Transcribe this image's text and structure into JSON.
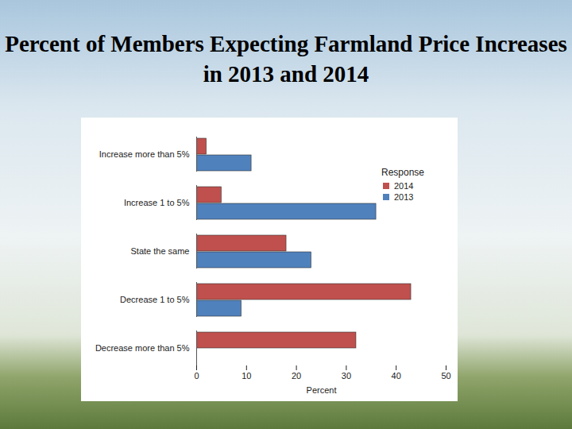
{
  "chart_data": {
    "type": "bar",
    "orientation": "horizontal",
    "title": "Percent of Members Expecting Farmland Price Increases in 2013 and 2014",
    "x_label": "Percent",
    "legend_title": "Response",
    "legend": "upper right",
    "categories": [
      "Increase more than 5%",
      "Increase 1 to 5%",
      "State the same",
      "Decrease 1 to 5%",
      "Decrease more than 5%"
    ],
    "series": [
      {
        "name": "2014",
        "color": "#c0504d",
        "values": [
          2,
          5,
          18,
          43,
          32
        ]
      },
      {
        "name": "2013",
        "color": "#4f81bd",
        "values": [
          11,
          36,
          23,
          9,
          0
        ]
      }
    ],
    "xlim": [
      0,
      50
    ],
    "xticks": [
      0,
      10,
      20,
      30,
      40,
      50
    ],
    "grid": false
  }
}
